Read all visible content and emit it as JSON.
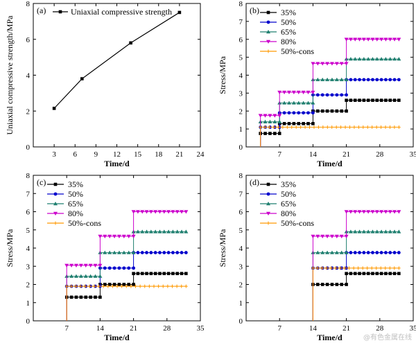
{
  "watermark": "@有色金属在线",
  "colors": {
    "35%": "#000000",
    "50%": "#0000cc",
    "65%": "#1f7f6f",
    "80%": "#cc00cc",
    "50%-cons": "#ff9900",
    "A": "#000000"
  },
  "chart_data": [
    {
      "panel": "(a)",
      "type": "line",
      "xlabel": "Time/d",
      "ylabel": "Uniaxial compressive strength/MPa",
      "xlim": [
        0,
        24
      ],
      "ylim": [
        0,
        8
      ],
      "xticks": [
        3,
        6,
        9,
        12,
        15,
        18,
        21,
        24
      ],
      "yticks": [
        0,
        2,
        4,
        6,
        8
      ],
      "series": [
        {
          "name": "Uniaxial compressive strength",
          "x": [
            3,
            7,
            14,
            21
          ],
          "y": [
            2.15,
            3.8,
            5.8,
            7.5
          ]
        }
      ]
    },
    {
      "panel": "(b)",
      "type": "line",
      "xlabel": "Time/d",
      "ylabel": "Stress/MPa",
      "xlim": [
        0,
        35
      ],
      "ylim": [
        0,
        8
      ],
      "xticks": [
        7,
        14,
        21,
        28,
        35
      ],
      "yticks": [
        0,
        1,
        2,
        3,
        4,
        5,
        6,
        7,
        8
      ],
      "series": [
        {
          "name": "35%",
          "start": 3,
          "steps": [
            [
              3,
              0.75
            ],
            [
              7,
              1.3
            ],
            [
              14,
              2.0
            ],
            [
              21,
              2.6
            ]
          ],
          "end": 32
        },
        {
          "name": "50%",
          "start": 3,
          "steps": [
            [
              3,
              1.1
            ],
            [
              7,
              1.9
            ],
            [
              14,
              2.9
            ],
            [
              21,
              3.75
            ]
          ],
          "end": 32
        },
        {
          "name": "65%",
          "start": 3,
          "steps": [
            [
              3,
              1.4
            ],
            [
              7,
              2.45
            ],
            [
              14,
              3.75
            ],
            [
              21,
              4.9
            ]
          ],
          "end": 32
        },
        {
          "name": "80%",
          "start": 3,
          "steps": [
            [
              3,
              1.75
            ],
            [
              7,
              3.05
            ],
            [
              14,
              4.65
            ],
            [
              21,
              6.0
            ]
          ],
          "end": 32
        },
        {
          "name": "50%-cons",
          "start": 3,
          "steps": [
            [
              3,
              1.1
            ]
          ],
          "end": 32
        }
      ]
    },
    {
      "panel": "(c)",
      "type": "line",
      "xlabel": "Time/d",
      "ylabel": "Stress/MPa",
      "xlim": [
        0,
        35
      ],
      "ylim": [
        0,
        8
      ],
      "xticks": [
        7,
        14,
        21,
        28,
        35
      ],
      "yticks": [
        0,
        1,
        2,
        3,
        4,
        5,
        6,
        7,
        8
      ],
      "series": [
        {
          "name": "35%",
          "start": 7,
          "steps": [
            [
              7,
              1.3
            ],
            [
              14,
              2.0
            ],
            [
              21,
              2.6
            ]
          ],
          "end": 32
        },
        {
          "name": "50%",
          "start": 7,
          "steps": [
            [
              7,
              1.9
            ],
            [
              14,
              2.9
            ],
            [
              21,
              3.75
            ]
          ],
          "end": 32
        },
        {
          "name": "65%",
          "start": 7,
          "steps": [
            [
              7,
              2.45
            ],
            [
              14,
              3.75
            ],
            [
              21,
              4.9
            ]
          ],
          "end": 32
        },
        {
          "name": "80%",
          "start": 7,
          "steps": [
            [
              7,
              3.05
            ],
            [
              14,
              4.65
            ],
            [
              21,
              6.0
            ]
          ],
          "end": 32
        },
        {
          "name": "50%-cons",
          "start": 7,
          "steps": [
            [
              7,
              1.9
            ]
          ],
          "end": 32
        }
      ]
    },
    {
      "panel": "(d)",
      "type": "line",
      "xlabel": "Time/d",
      "ylabel": "Stress/MPa",
      "xlim": [
        0,
        35
      ],
      "ylim": [
        0,
        8
      ],
      "xticks": [
        7,
        14,
        21,
        28,
        35
      ],
      "yticks": [
        0,
        1,
        2,
        3,
        4,
        5,
        6,
        7,
        8
      ],
      "series": [
        {
          "name": "35%",
          "start": 14,
          "steps": [
            [
              14,
              2.0
            ],
            [
              21,
              2.6
            ]
          ],
          "end": 32
        },
        {
          "name": "50%",
          "start": 14,
          "steps": [
            [
              14,
              2.9
            ],
            [
              21,
              3.75
            ]
          ],
          "end": 32
        },
        {
          "name": "65%",
          "start": 14,
          "steps": [
            [
              14,
              3.75
            ],
            [
              21,
              4.9
            ]
          ],
          "end": 32
        },
        {
          "name": "80%",
          "start": 14,
          "steps": [
            [
              14,
              4.65
            ],
            [
              21,
              6.0
            ]
          ],
          "end": 32
        },
        {
          "name": "50%-cons",
          "start": 14,
          "steps": [
            [
              14,
              2.9
            ]
          ],
          "end": 32
        }
      ]
    }
  ]
}
